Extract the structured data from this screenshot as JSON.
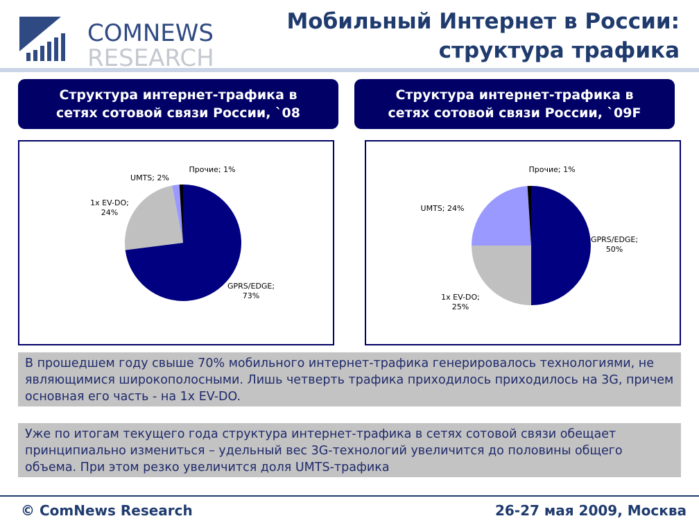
{
  "logo": {
    "line1": "COMNEWS",
    "line2": "RESEARCH"
  },
  "page_title": "Мобильный Интернет в России:\nструктура трафика",
  "charts": [
    {
      "header": "Структура интернет-трафика в\nсетях сотовой связи России, `08"
    },
    {
      "header": "Структура интернет-трафика в\nсетях сотовой связи России, `09F"
    }
  ],
  "chart_data": [
    {
      "type": "pie",
      "title": "Структура интернет-трафика в сетях сотовой связи России, `08",
      "slices": [
        {
          "label": "GPRS/EDGE;",
          "pct_label": "73%",
          "value": 73,
          "color": "#000080"
        },
        {
          "label": "1x EV-DO;",
          "pct_label": "24%",
          "value": 24,
          "color": "#c0c0c0"
        },
        {
          "label": "UMTS; 2%",
          "pct_label": "",
          "value": 2,
          "color": "#9999ff"
        },
        {
          "label": "Прочие; 1%",
          "pct_label": "",
          "value": 1,
          "color": "#000000"
        }
      ]
    },
    {
      "type": "pie",
      "title": "Структура интернет-трафика в сетях сотовой связи России, `09F",
      "slices": [
        {
          "label": "GPRS/EDGE;",
          "pct_label": "50%",
          "value": 50,
          "color": "#000080"
        },
        {
          "label": "1x EV-DO;",
          "pct_label": "25%",
          "value": 25,
          "color": "#c0c0c0"
        },
        {
          "label": "UMTS; 24%",
          "pct_label": "",
          "value": 24,
          "color": "#9999ff"
        },
        {
          "label": "Прочие; 1%",
          "pct_label": "",
          "value": 1,
          "color": "#000000"
        }
      ]
    }
  ],
  "notes": [
    "В прошедшем году свыше 70% мобильного интернет-трафика генерировалось технологиями, не являющимися широкополосными. Лишь четверть трафика приходилось приходилось на 3G, причем основная его часть - на 1x EV-DO.",
    "Уже по итогам текущего года структура интернет-трафика в сетях сотовой связи обещает принципиально измениться – удельный вес 3G-технологий увеличится до половины общего объема. При этом резко увеличится доля UMTS-трафика"
  ],
  "footer": {
    "left": "© ComNews Research",
    "right": "26-27 мая 2009, Москва"
  }
}
